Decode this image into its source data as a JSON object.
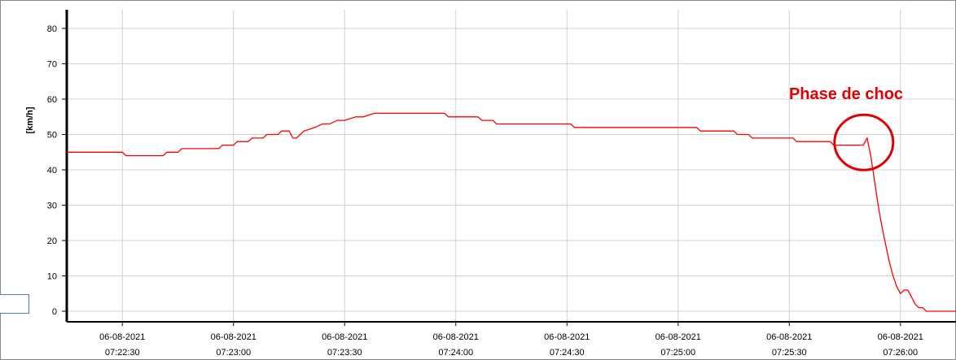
{
  "chart_data": {
    "type": "line",
    "ylabel": "[km/h]",
    "xlabel": "",
    "ylim": [
      0,
      85
    ],
    "yticks": [
      0,
      10,
      20,
      30,
      40,
      50,
      60,
      70,
      80
    ],
    "grid": true,
    "line_color": "#ff0000",
    "annotation_color": "#e00000",
    "xtick_labels": [
      {
        "date": "06-08-2021",
        "time": "07:22:30"
      },
      {
        "date": "06-08-2021",
        "time": "07:23:00"
      },
      {
        "date": "06-08-2021",
        "time": "07:23:30"
      },
      {
        "date": "06-08-2021",
        "time": "07:24:00"
      },
      {
        "date": "06-08-2021",
        "time": "07:24:30"
      },
      {
        "date": "06-08-2021",
        "time": "07:25:00"
      },
      {
        "date": "06-08-2021",
        "time": "07:25:30"
      },
      {
        "date": "06-08-2021",
        "time": "07:26:00"
      }
    ],
    "xlim": [
      "07:22:15",
      "07:26:15"
    ],
    "annotation": {
      "text": "Phase de choc",
      "time": "07:25:51",
      "value": 48
    },
    "series": [
      {
        "x": [
          "07:22:15",
          "07:22:30",
          "07:22:31",
          "07:22:41",
          "07:22:42",
          "07:22:45",
          "07:22:46",
          "07:22:56",
          "07:22:57",
          "07:23:00",
          "07:23:01",
          "07:23:04",
          "07:23:05",
          "07:23:08",
          "07:23:09",
          "07:23:12",
          "07:23:13",
          "07:23:15",
          "07:23:16",
          "07:23:17",
          "07:23:18",
          "07:23:19",
          "07:23:22",
          "07:23:24",
          "07:23:26",
          "07:23:28",
          "07:23:30",
          "07:23:33",
          "07:23:35",
          "07:23:38",
          "07:23:41",
          "07:23:44",
          "07:23:46",
          "07:23:57",
          "07:23:58",
          "07:24:06",
          "07:24:07",
          "07:24:10",
          "07:24:11",
          "07:24:31",
          "07:24:32",
          "07:25:05",
          "07:25:06",
          "07:25:15",
          "07:25:16",
          "07:25:19",
          "07:25:20",
          "07:25:31",
          "07:25:32",
          "07:25:41",
          "07:25:42",
          "07:25:48",
          "07:25:50",
          "07:25:51",
          "07:25:52",
          "07:25:53",
          "07:25:54",
          "07:25:55",
          "07:25:56",
          "07:25:57",
          "07:25:58",
          "07:25:59",
          "07:26:00",
          "07:26:01",
          "07:26:02",
          "07:26:03",
          "07:26:04",
          "07:26:05",
          "07:26:06",
          "07:26:07",
          "07:26:15"
        ],
        "y": [
          45,
          45,
          44,
          44,
          45,
          45,
          46,
          46,
          47,
          47,
          48,
          48,
          49,
          49,
          50,
          50,
          51,
          51,
          49,
          49,
          50,
          51,
          52,
          53,
          53,
          54,
          54,
          55,
          55,
          56,
          56,
          56,
          56,
          56,
          55,
          55,
          54,
          54,
          53,
          53,
          52,
          52,
          51,
          51,
          50,
          50,
          49,
          49,
          48,
          48,
          47,
          47,
          47,
          49,
          44,
          37,
          30,
          24,
          19,
          14,
          10,
          7,
          5,
          6,
          6,
          4,
          2,
          1,
          1,
          0,
          0
        ]
      }
    ]
  }
}
